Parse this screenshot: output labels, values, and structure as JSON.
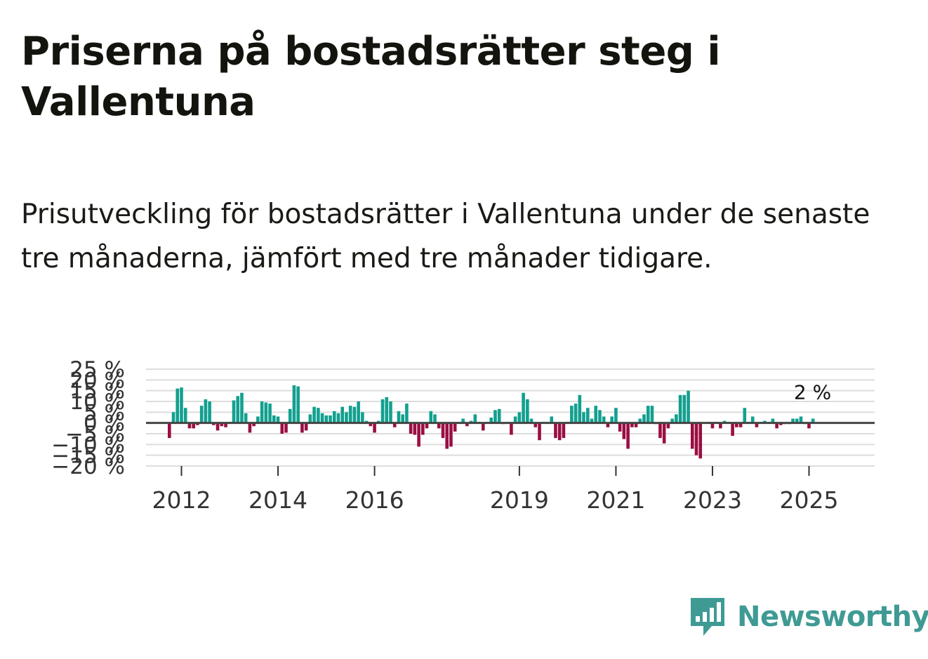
{
  "title": "Priserna på bostadsrätter steg i Vallentuna",
  "subtitle": "Prisutveckling för bostadsrätter i Vallentuna under de senaste tre månaderna, jämfört med tre månader tidigare.",
  "brand": {
    "name": "Newsworthy",
    "color": "#3f9a94",
    "icon": "bar-chart-speech-bubble-icon"
  },
  "colors": {
    "positive": "#12a08f",
    "negative": "#9a0e43",
    "zero_line": "#444444",
    "grid": "#dddddd"
  },
  "chart_data": {
    "type": "bar",
    "title": "",
    "xlabel": "",
    "ylabel": "",
    "unit": "%",
    "ylim": [
      -20,
      25
    ],
    "y_ticks": [
      {
        "value": 25,
        "label": "25 %"
      },
      {
        "value": 20,
        "label": "20 %"
      },
      {
        "value": 15,
        "label": "15 %"
      },
      {
        "value": 10,
        "label": "10 %"
      },
      {
        "value": 5,
        "label": "5 %"
      },
      {
        "value": 0,
        "label": "0 %"
      },
      {
        "value": -5,
        "label": "−5 %"
      },
      {
        "value": -10,
        "label": "−10 %"
      },
      {
        "value": -15,
        "label": "−15 %"
      },
      {
        "value": -20,
        "label": "−20 %"
      }
    ],
    "x_ticks": [
      {
        "value": 2012.0,
        "label": "2012"
      },
      {
        "value": 2014.0,
        "label": "2014"
      },
      {
        "value": 2016.0,
        "label": "2016"
      },
      {
        "value": 2019.0,
        "label": "2019"
      },
      {
        "value": 2021.0,
        "label": "2021"
      },
      {
        "value": 2023.0,
        "label": "2023"
      },
      {
        "value": 2025.0,
        "label": "2025"
      }
    ],
    "x_start": 2011.75,
    "step": 0.08333,
    "last_label": "2 %",
    "values": [
      -7,
      5,
      16,
      16.5,
      7,
      -2.5,
      -2.5,
      -1,
      8,
      11,
      10,
      -1,
      -3.5,
      -1.5,
      -2,
      0.5,
      10.5,
      12.5,
      14,
      4.5,
      -4.5,
      -1.5,
      3,
      10,
      9.5,
      9,
      3.5,
      3,
      -5,
      -4.5,
      6.5,
      17.5,
      17,
      -4.5,
      -3.5,
      4,
      7.5,
      7,
      4.5,
      3.5,
      3.5,
      5.5,
      4.5,
      7.5,
      5,
      8,
      7.5,
      10,
      5,
      1,
      -1.5,
      -4.5,
      1,
      11,
      12,
      10,
      -2,
      5.5,
      4,
      9,
      -5,
      -5.5,
      -11,
      -5.5,
      -2.5,
      5.5,
      4,
      -2.5,
      -7,
      -12,
      -11,
      -4,
      0.5,
      2,
      -1.5,
      1,
      4,
      0.5,
      -3.5,
      0.5,
      2.5,
      6,
      6.5,
      -0.5,
      0.5,
      -5.5,
      3,
      5,
      14,
      11,
      2,
      -2,
      -8,
      0.5,
      0.5,
      3,
      -7,
      -8,
      -7,
      0.5,
      8,
      9,
      13,
      5,
      7,
      2,
      8,
      6,
      3,
      -2,
      3,
      7,
      -4,
      -7.5,
      -12,
      -2,
      -2,
      2,
      4,
      8,
      8,
      -0.5,
      -7,
      -9.5,
      -2.5,
      2,
      4,
      13,
      13,
      15,
      -12,
      -15,
      -16.5,
      0,
      0.5,
      -2.5,
      0.5,
      -2.5,
      1,
      0.5,
      -6,
      -2,
      -2,
      7,
      0.5,
      3,
      -2,
      0.5,
      1,
      0.5,
      2,
      -2.5,
      -1,
      -0.5,
      -0.5,
      2,
      2,
      3,
      -0.5,
      -2.5,
      2
    ]
  }
}
